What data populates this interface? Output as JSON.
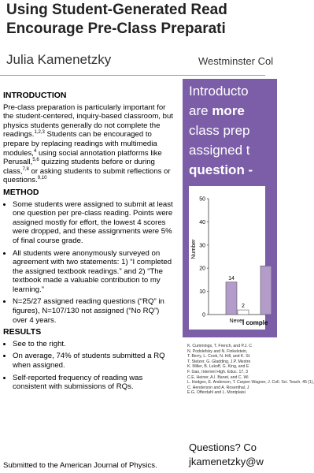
{
  "header": {
    "title_line1": "Using Student-Generated Read",
    "title_line2": "Encourage Pre-Class Preparati",
    "author": "Julia Kamenetzky",
    "affiliation": "Westminster Col"
  },
  "intro": {
    "heading": "INTRODUCTION",
    "segments": [
      {
        "text": "Pre-class preparation is particularly important for the student-centered, inquiry-based classroom, but physics students generally do not complete the readings.",
        "sup": "1,2,3"
      },
      {
        "text": " Students can be encouraged to prepare by replacing readings with multimedia modules,",
        "sup": "4"
      },
      {
        "text": " using social annotation platforms like Perusall,",
        "sup": "5,6"
      },
      {
        "text": " quizzing students before or during class,",
        "sup": "7,8"
      },
      {
        "text": " or asking students to submit reflections or questions.",
        "sup": "9,10"
      }
    ]
  },
  "method": {
    "heading": "METHOD",
    "bullets": [
      "Some students were assigned to submit at least one question per pre-class reading. Points were assigned mostly for effort, the lowest 4 scores were dropped, and these assignments were 5% of final course grade.",
      "All students were anonymously surveyed on agreement with two statements: 1) “I completed the assigned textbook readings.” and 2) “The textbook made a valuable contribution to my learning.”",
      "N=25/27 assigned reading questions (“RQ” in figures), N=107/130 not assigned (“No RQ”) over 4 years."
    ]
  },
  "results": {
    "heading": "RESULTS",
    "bullets": [
      "See to the right.",
      "On average, 74% of students submitted a RQ when assigned.",
      "Self-reported frequency of reading was consistent with submissions of RQs."
    ]
  },
  "footer": "Submitted to the American Journal of Physics.",
  "headline": {
    "l1": "Introducto",
    "l2a": "are",
    "l2b": "more",
    "l3": "class prep",
    "l4": "assigned t",
    "l5": "question -"
  },
  "chart_data": {
    "type": "bar",
    "ylabel": "Number",
    "xlabel": "I comple",
    "categories": [
      "Never",
      null
    ],
    "series": [
      {
        "color": "#b39cc9",
        "values": [
          14,
          21
        ]
      },
      {
        "color": "#ffffff",
        "values": [
          2,
          null
        ]
      }
    ],
    "ylim": [
      0,
      50
    ],
    "yticks": [
      0,
      10,
      20,
      30,
      40,
      50
    ]
  },
  "references": [
    "K. Cummings, T. French, and P.J. C",
    "N. Podolefsky and N. Finkelstein,",
    "T. Berry, L. Cook, N. Hill, and K. St",
    "T. Stelzer, G. Gladding, J.P. Mestre",
    "K. Miller, B. Lukoff, G. King, and E",
    "F. Gao, Internet High. Educ. 17, 3",
    "C.E. Heiner, A.I. Banet, and C. Wi",
    "L. Hodges, E. Anderson, T. Carpen Wagner, J. Coll. Sci. Teach. 45 (1),",
    "C. Henderson and A. Rosenthal, J",
    "E.G. Offerdahl and L. Montplaisi"
  ],
  "contact": {
    "line1": "Questions? Co",
    "line2": "jkamenetzky@w"
  }
}
